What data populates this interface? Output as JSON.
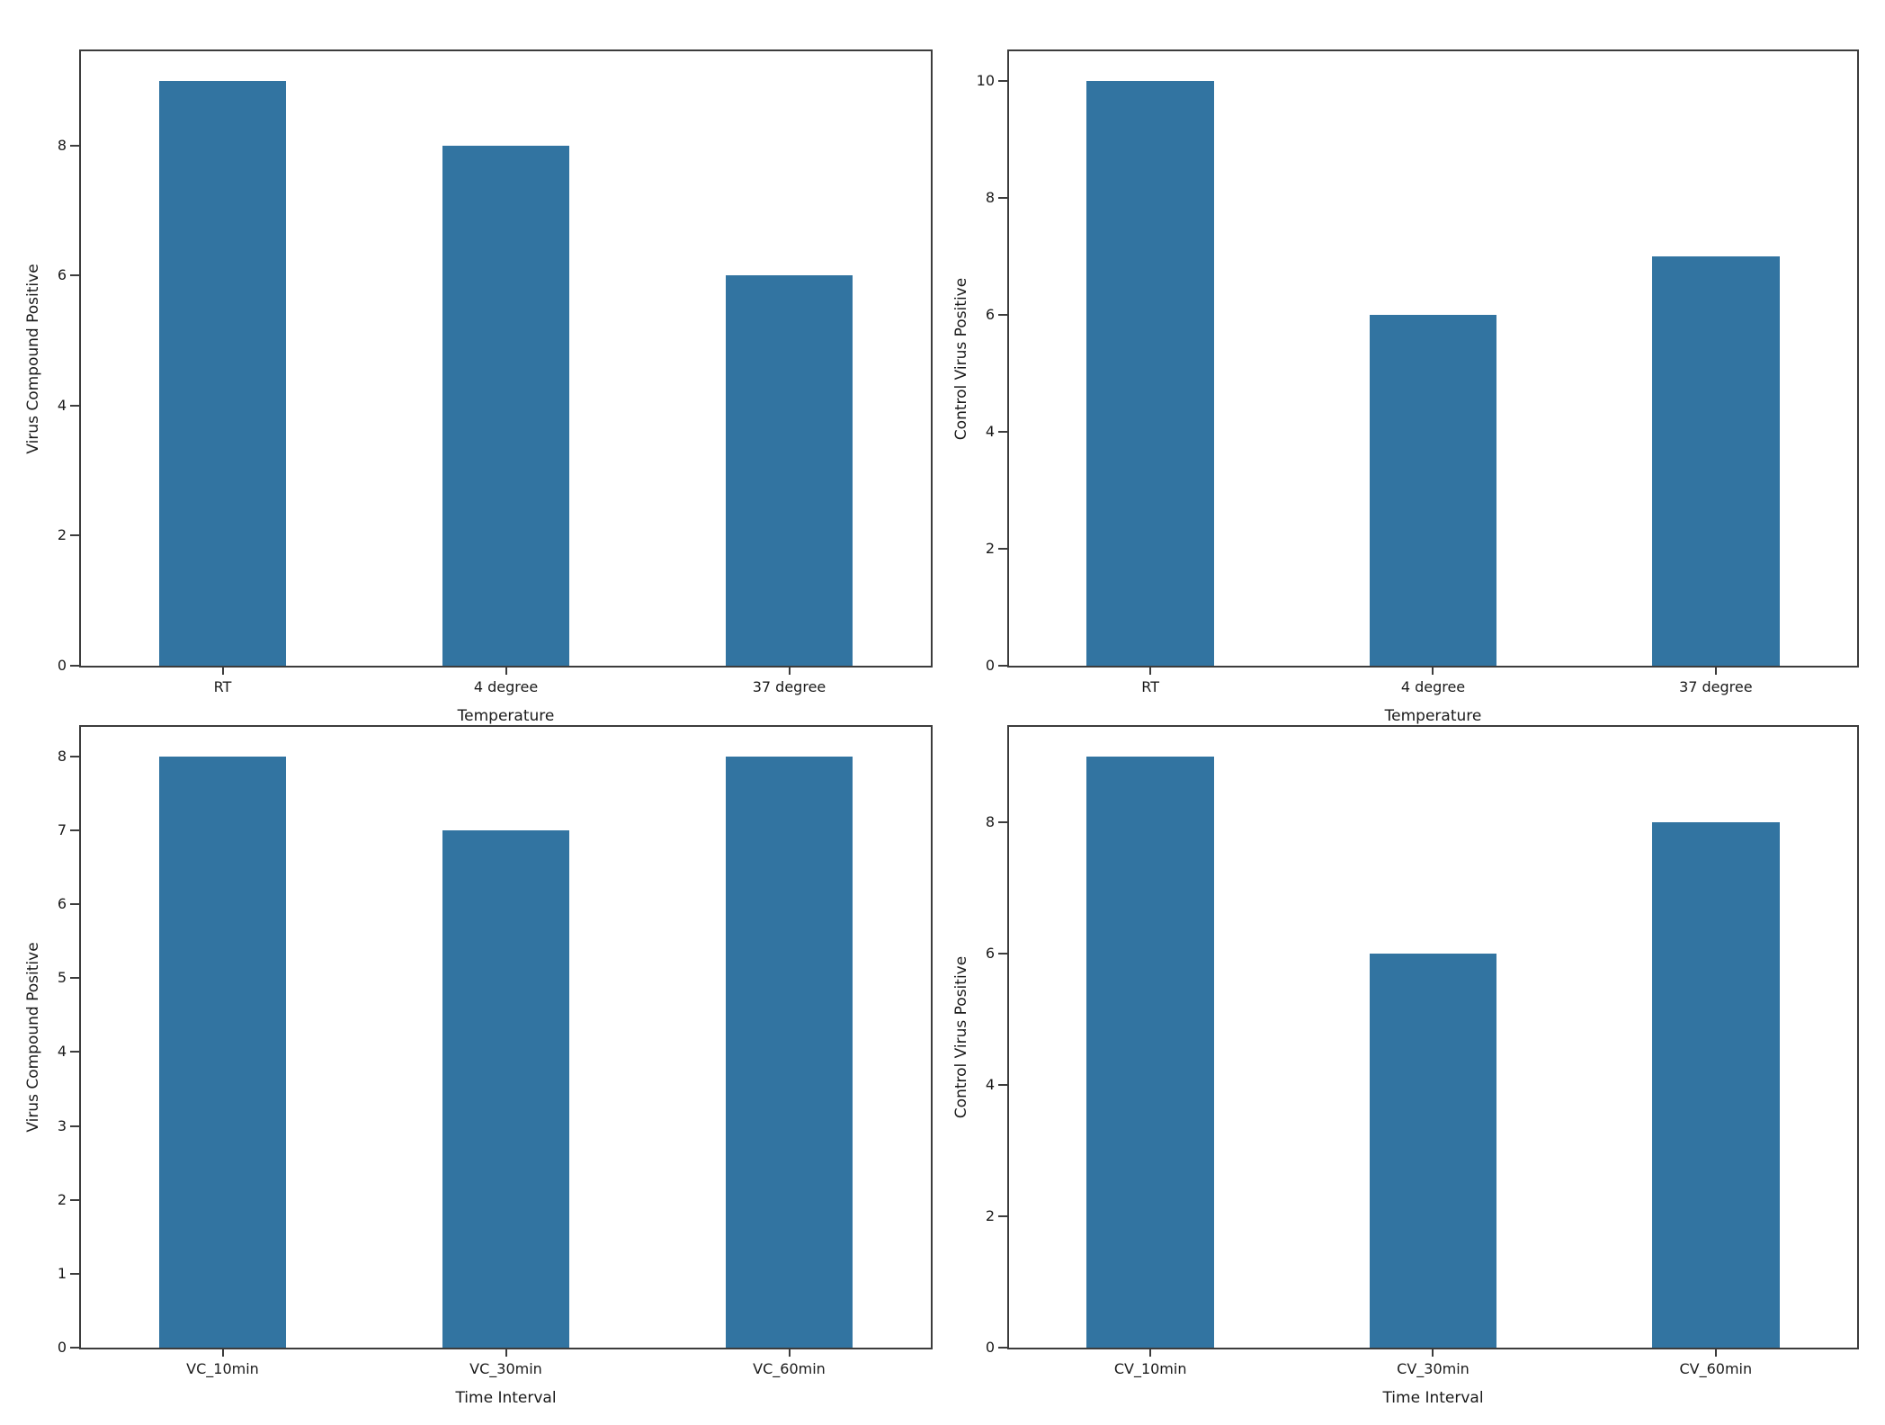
{
  "figure": {
    "background": "#ffffff",
    "bar_color": "#3274a1",
    "spine_color": "#3c3c3c",
    "layout": "2x2 grid of bar subplots, no titles, no legend, no grid"
  },
  "chart_data": [
    {
      "id": "top-left",
      "type": "bar",
      "title": "",
      "xlabel": "Temperature",
      "ylabel": "Virus Compound Positive",
      "categories": [
        "RT",
        "4 degree",
        "37 degree"
      ],
      "values": [
        9,
        8,
        6
      ],
      "yticks": [
        0,
        2,
        4,
        6,
        8
      ],
      "ylim": [
        0,
        9.45
      ],
      "grid": false,
      "legend": null
    },
    {
      "id": "top-right",
      "type": "bar",
      "title": "",
      "xlabel": "Temperature",
      "ylabel": "Control Virus Positive",
      "categories": [
        "RT",
        "4 degree",
        "37 degree"
      ],
      "values": [
        10,
        6,
        7
      ],
      "yticks": [
        0,
        2,
        4,
        6,
        8,
        10
      ],
      "ylim": [
        0,
        10.5
      ],
      "grid": false,
      "legend": null
    },
    {
      "id": "bottom-left",
      "type": "bar",
      "title": "",
      "xlabel": "Time Interval",
      "ylabel": "Virus Compound Positive",
      "categories": [
        "VC_10min",
        "VC_30min",
        "VC_60min"
      ],
      "values": [
        8,
        7,
        8
      ],
      "yticks": [
        0,
        1,
        2,
        3,
        4,
        5,
        6,
        7,
        8
      ],
      "ylim": [
        0,
        8.4
      ],
      "grid": false,
      "legend": null
    },
    {
      "id": "bottom-right",
      "type": "bar",
      "title": "",
      "xlabel": "Time Interval",
      "ylabel": "Control Virus Positive",
      "categories": [
        "CV_10min",
        "CV_30min",
        "CV_60min"
      ],
      "values": [
        9,
        6,
        8
      ],
      "yticks": [
        0,
        2,
        4,
        6,
        8
      ],
      "ylim": [
        0,
        9.45
      ],
      "grid": false,
      "legend": null
    }
  ]
}
